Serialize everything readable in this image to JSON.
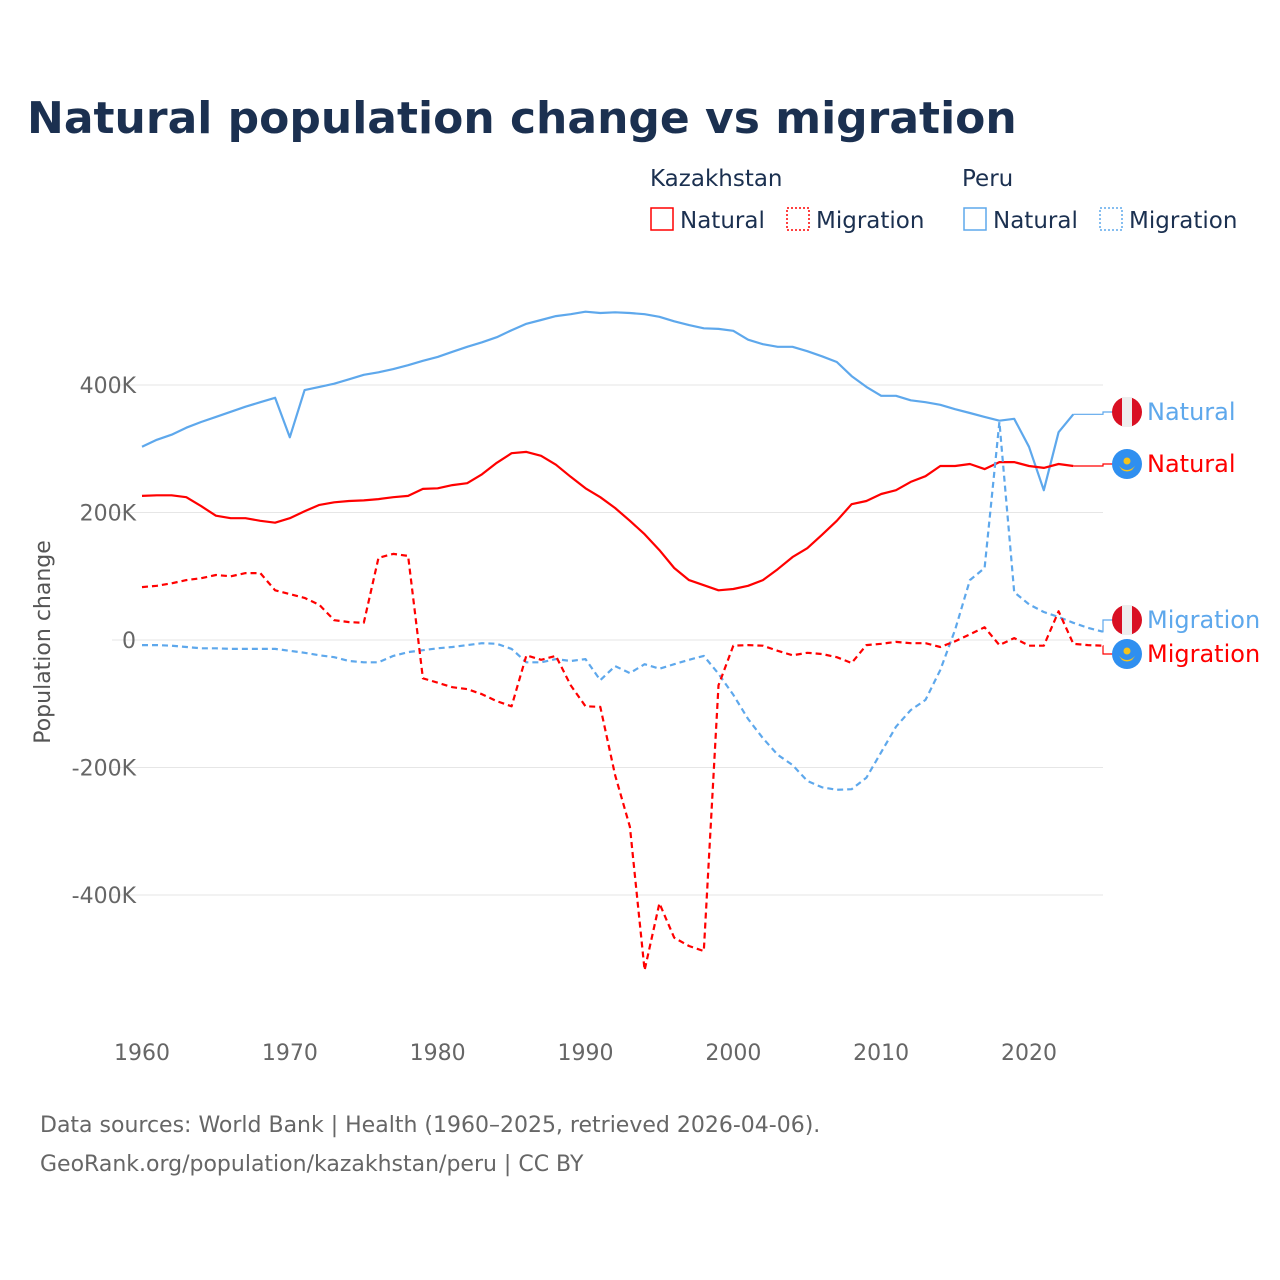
{
  "chart_data": {
    "type": "line",
    "title": "Natural population change vs migration",
    "ylabel": "Population change",
    "xlabel": "",
    "ylim": [
      -560000,
      560000
    ],
    "xlim": [
      1960,
      2025
    ],
    "grid": true,
    "y_ticks": [
      {
        "v": 400000,
        "label": "400K"
      },
      {
        "v": 200000,
        "label": "200K"
      },
      {
        "v": 0,
        "label": "0"
      },
      {
        "v": -200000,
        "label": "-200K"
      },
      {
        "v": -400000,
        "label": "-400K"
      }
    ],
    "x_ticks": [
      {
        "v": 1960,
        "label": "1960"
      },
      {
        "v": 1970,
        "label": "1970"
      },
      {
        "v": 1980,
        "label": "1980"
      },
      {
        "v": 1990,
        "label": "1990"
      },
      {
        "v": 2000,
        "label": "2000"
      },
      {
        "v": 2010,
        "label": "2010"
      },
      {
        "v": 2020,
        "label": "2020"
      }
    ],
    "legend": {
      "placement": "top-right",
      "groups": [
        {
          "country": "Kazakhstan",
          "items": [
            "Natural",
            "Migration"
          ]
        },
        {
          "country": "Peru",
          "items": [
            "Natural",
            "Migration"
          ]
        }
      ]
    },
    "series": [
      {
        "name": "Peru Natural",
        "country": "Peru",
        "kind": "Natural",
        "color": "#5ea8ec",
        "dashed": false,
        "end_label": "Natural",
        "flag": "peru-flag",
        "start": 1960,
        "values": [
          303,
          314,
          322,
          333,
          342,
          350,
          358,
          366,
          373,
          380,
          318,
          392,
          397,
          402,
          409,
          416,
          420,
          425,
          431,
          438,
          444,
          452,
          460,
          467,
          475,
          486,
          496,
          502,
          508,
          511,
          515,
          513,
          514,
          513,
          511,
          507,
          500,
          494,
          489,
          488,
          485,
          471,
          464,
          460,
          460,
          453,
          445,
          436,
          414,
          397,
          383,
          383,
          376,
          373,
          369,
          362,
          356,
          350,
          344,
          347,
          303,
          235,
          326,
          354
        ]
      },
      {
        "name": "Kazakhstan Natural",
        "country": "Kazakhstan",
        "kind": "Natural",
        "color": "#ff0000",
        "dashed": false,
        "end_label": "Natural",
        "flag": "kazakhstan-flag",
        "start": 1960,
        "values": [
          226,
          227,
          227,
          224,
          210,
          195,
          191,
          191,
          187,
          184,
          191,
          202,
          212,
          216,
          218,
          219,
          221,
          224,
          226,
          237,
          238,
          243,
          246,
          260,
          278,
          293,
          295,
          289,
          275,
          256,
          238,
          224,
          207,
          187,
          166,
          141,
          113,
          94,
          86,
          78,
          80,
          85,
          94,
          111,
          130,
          144,
          165,
          187,
          213,
          218,
          229,
          235,
          248,
          257,
          273,
          273,
          276,
          268,
          279,
          279,
          273,
          270,
          276,
          273
        ]
      },
      {
        "name": "Peru Migration",
        "country": "Peru",
        "kind": "Migration",
        "color": "#5ea8ec",
        "dashed": true,
        "end_label": "Migration",
        "flag": "peru-flag",
        "start": 1960,
        "values": [
          -8,
          -8,
          -9,
          -11,
          -13,
          -13,
          -14,
          -14,
          -14,
          -14,
          -17,
          -20,
          -24,
          -27,
          -33,
          -35,
          -35,
          -25,
          -19,
          -16,
          -13,
          -11,
          -8,
          -5,
          -6,
          -14,
          -35,
          -35,
          -30,
          -33,
          -30,
          -63,
          -41,
          -52,
          -38,
          -45,
          -38,
          -31,
          -25,
          -53,
          -86,
          -124,
          -154,
          -180,
          -196,
          -221,
          -231,
          -235,
          -234,
          -216,
          -176,
          -136,
          -110,
          -94,
          -47,
          16,
          94,
          113,
          342,
          75,
          56,
          44,
          36,
          27,
          19,
          13
        ]
      },
      {
        "name": "Kazakhstan Migration",
        "country": "Kazakhstan",
        "kind": "Migration",
        "color": "#ff0000",
        "dashed": true,
        "end_label": "Migration",
        "flag": "kazakhstan-flag",
        "start": 1960,
        "values": [
          83,
          85,
          89,
          94,
          97,
          102,
          100,
          105,
          105,
          78,
          72,
          66,
          55,
          31,
          28,
          27,
          129,
          135,
          132,
          -60,
          -67,
          -74,
          -77,
          -85,
          -96,
          -104,
          -24,
          -31,
          -25,
          -71,
          -104,
          -105,
          -212,
          -293,
          -518,
          -413,
          -467,
          -480,
          -488,
          -71,
          -9,
          -8,
          -9,
          -17,
          -24,
          -20,
          -22,
          -27,
          -36,
          -8,
          -6,
          -3,
          -5,
          -5,
          -11,
          -2,
          9,
          20,
          -8,
          3,
          -9,
          -9,
          45,
          -6,
          -8,
          -9
        ]
      }
    ],
    "value_unit": "thousands"
  },
  "footer": {
    "line1": "Data sources: World Bank | Health (1960–2025, retrieved 2026-04-06).",
    "line2": "GeoRank.org/population/kazakhstan/peru | CC BY"
  }
}
